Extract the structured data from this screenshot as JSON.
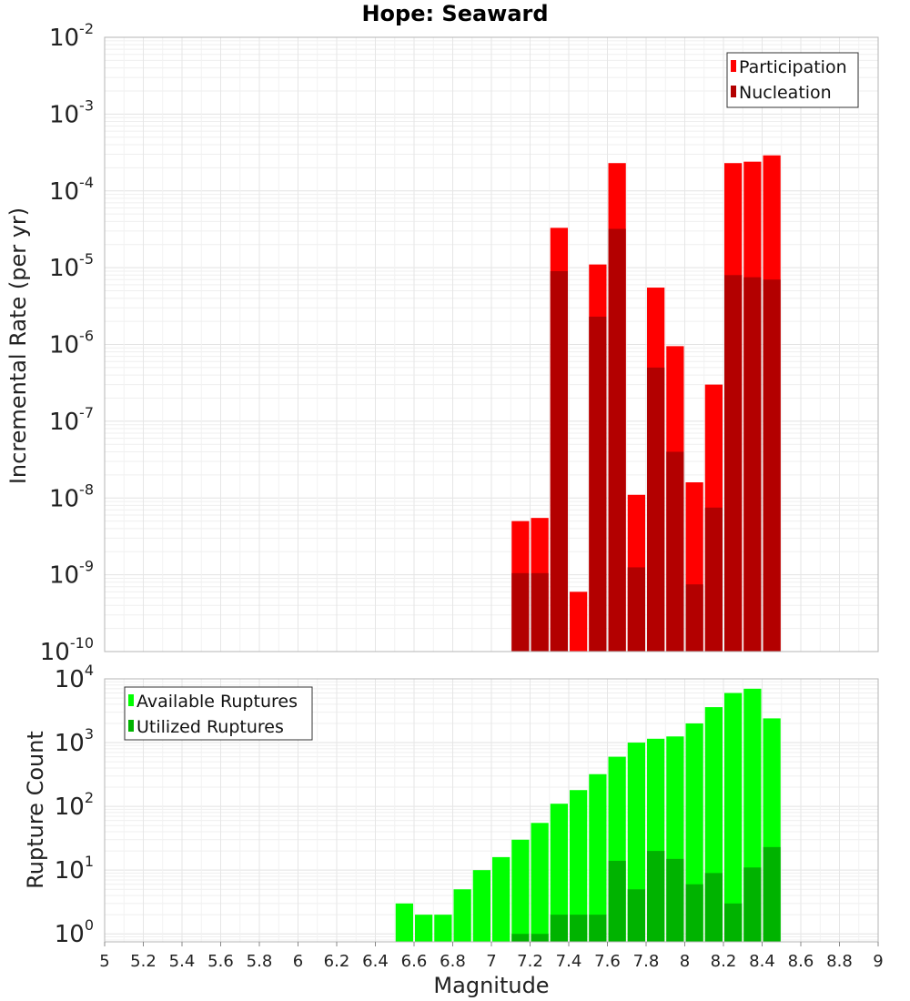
{
  "chart_data": [
    {
      "type": "bar",
      "title": "Hope: Seaward",
      "ylabel": "Incremental Rate (per yr)",
      "xlabel": "",
      "yscale": "log",
      "ylim": [
        1e-10,
        0.01
      ],
      "xlim": [
        5,
        9
      ],
      "grid": true,
      "legend_position": "top-right",
      "bar_width": 0.1,
      "y_ticks": [
        {
          "base": "10",
          "exp": "-10"
        },
        {
          "base": "10",
          "exp": "-9"
        },
        {
          "base": "10",
          "exp": "-8"
        },
        {
          "base": "10",
          "exp": "-7"
        },
        {
          "base": "10",
          "exp": "-6"
        },
        {
          "base": "10",
          "exp": "-5"
        },
        {
          "base": "10",
          "exp": "-4"
        },
        {
          "base": "10",
          "exp": "-3"
        },
        {
          "base": "10",
          "exp": "-2"
        }
      ],
      "x": [
        7.15,
        7.25,
        7.35,
        7.45,
        7.55,
        7.65,
        7.75,
        7.85,
        7.95,
        8.05,
        8.15,
        8.25,
        8.35,
        8.45
      ],
      "series": [
        {
          "name": "Participation",
          "color": "#ff0000",
          "values": [
            5e-09,
            5.5e-09,
            3.3e-05,
            6e-10,
            1.1e-05,
            0.00023,
            1.1e-08,
            5.5e-06,
            9.5e-07,
            1.6e-08,
            3e-07,
            0.00023,
            0.00024,
            0.00029
          ]
        },
        {
          "name": "Nucleation",
          "color": "#b30000",
          "values": [
            1.05e-09,
            1.05e-09,
            9e-06,
            null,
            2.3e-06,
            3.2e-05,
            1.25e-09,
            5e-07,
            4e-08,
            7.5e-10,
            7.5e-09,
            8e-06,
            7.5e-06,
            7e-06
          ]
        }
      ]
    },
    {
      "type": "bar",
      "ylabel": "Rupture Count",
      "xlabel": "Magnitude",
      "yscale": "log",
      "ylim": [
        0.75,
        10000
      ],
      "xlim": [
        5,
        9
      ],
      "grid": true,
      "legend_position": "top-left",
      "bar_width": 0.1,
      "y_ticks": [
        {
          "base": "10",
          "exp": "0"
        },
        {
          "base": "10",
          "exp": "1"
        },
        {
          "base": "10",
          "exp": "2"
        },
        {
          "base": "10",
          "exp": "3"
        },
        {
          "base": "10",
          "exp": "4"
        }
      ],
      "x_ticks": [
        "5",
        "5.2",
        "5.4",
        "5.6",
        "5.8",
        "6",
        "6.2",
        "6.4",
        "6.6",
        "6.8",
        "7",
        "7.2",
        "7.4",
        "7.6",
        "7.8",
        "8",
        "8.2",
        "8.4",
        "8.6",
        "8.8",
        "9"
      ],
      "x": [
        6.55,
        6.65,
        6.75,
        6.85,
        6.95,
        7.05,
        7.15,
        7.25,
        7.35,
        7.45,
        7.55,
        7.65,
        7.75,
        7.85,
        7.95,
        8.05,
        8.15,
        8.25,
        8.35,
        8.45
      ],
      "series": [
        {
          "name": "Available Ruptures",
          "color": "#00ff00",
          "values": [
            3,
            2,
            2,
            5,
            10,
            16,
            30,
            55,
            110,
            180,
            320,
            600,
            1000,
            1150,
            1250,
            2000,
            3600,
            6000,
            7000,
            2400
          ]
        },
        {
          "name": "Utilized Ruptures",
          "color": "#00b300",
          "values": [
            null,
            null,
            null,
            null,
            null,
            null,
            1,
            1,
            2,
            2,
            2,
            14,
            5,
            20,
            15,
            6,
            9,
            3,
            11,
            23
          ]
        }
      ]
    }
  ]
}
